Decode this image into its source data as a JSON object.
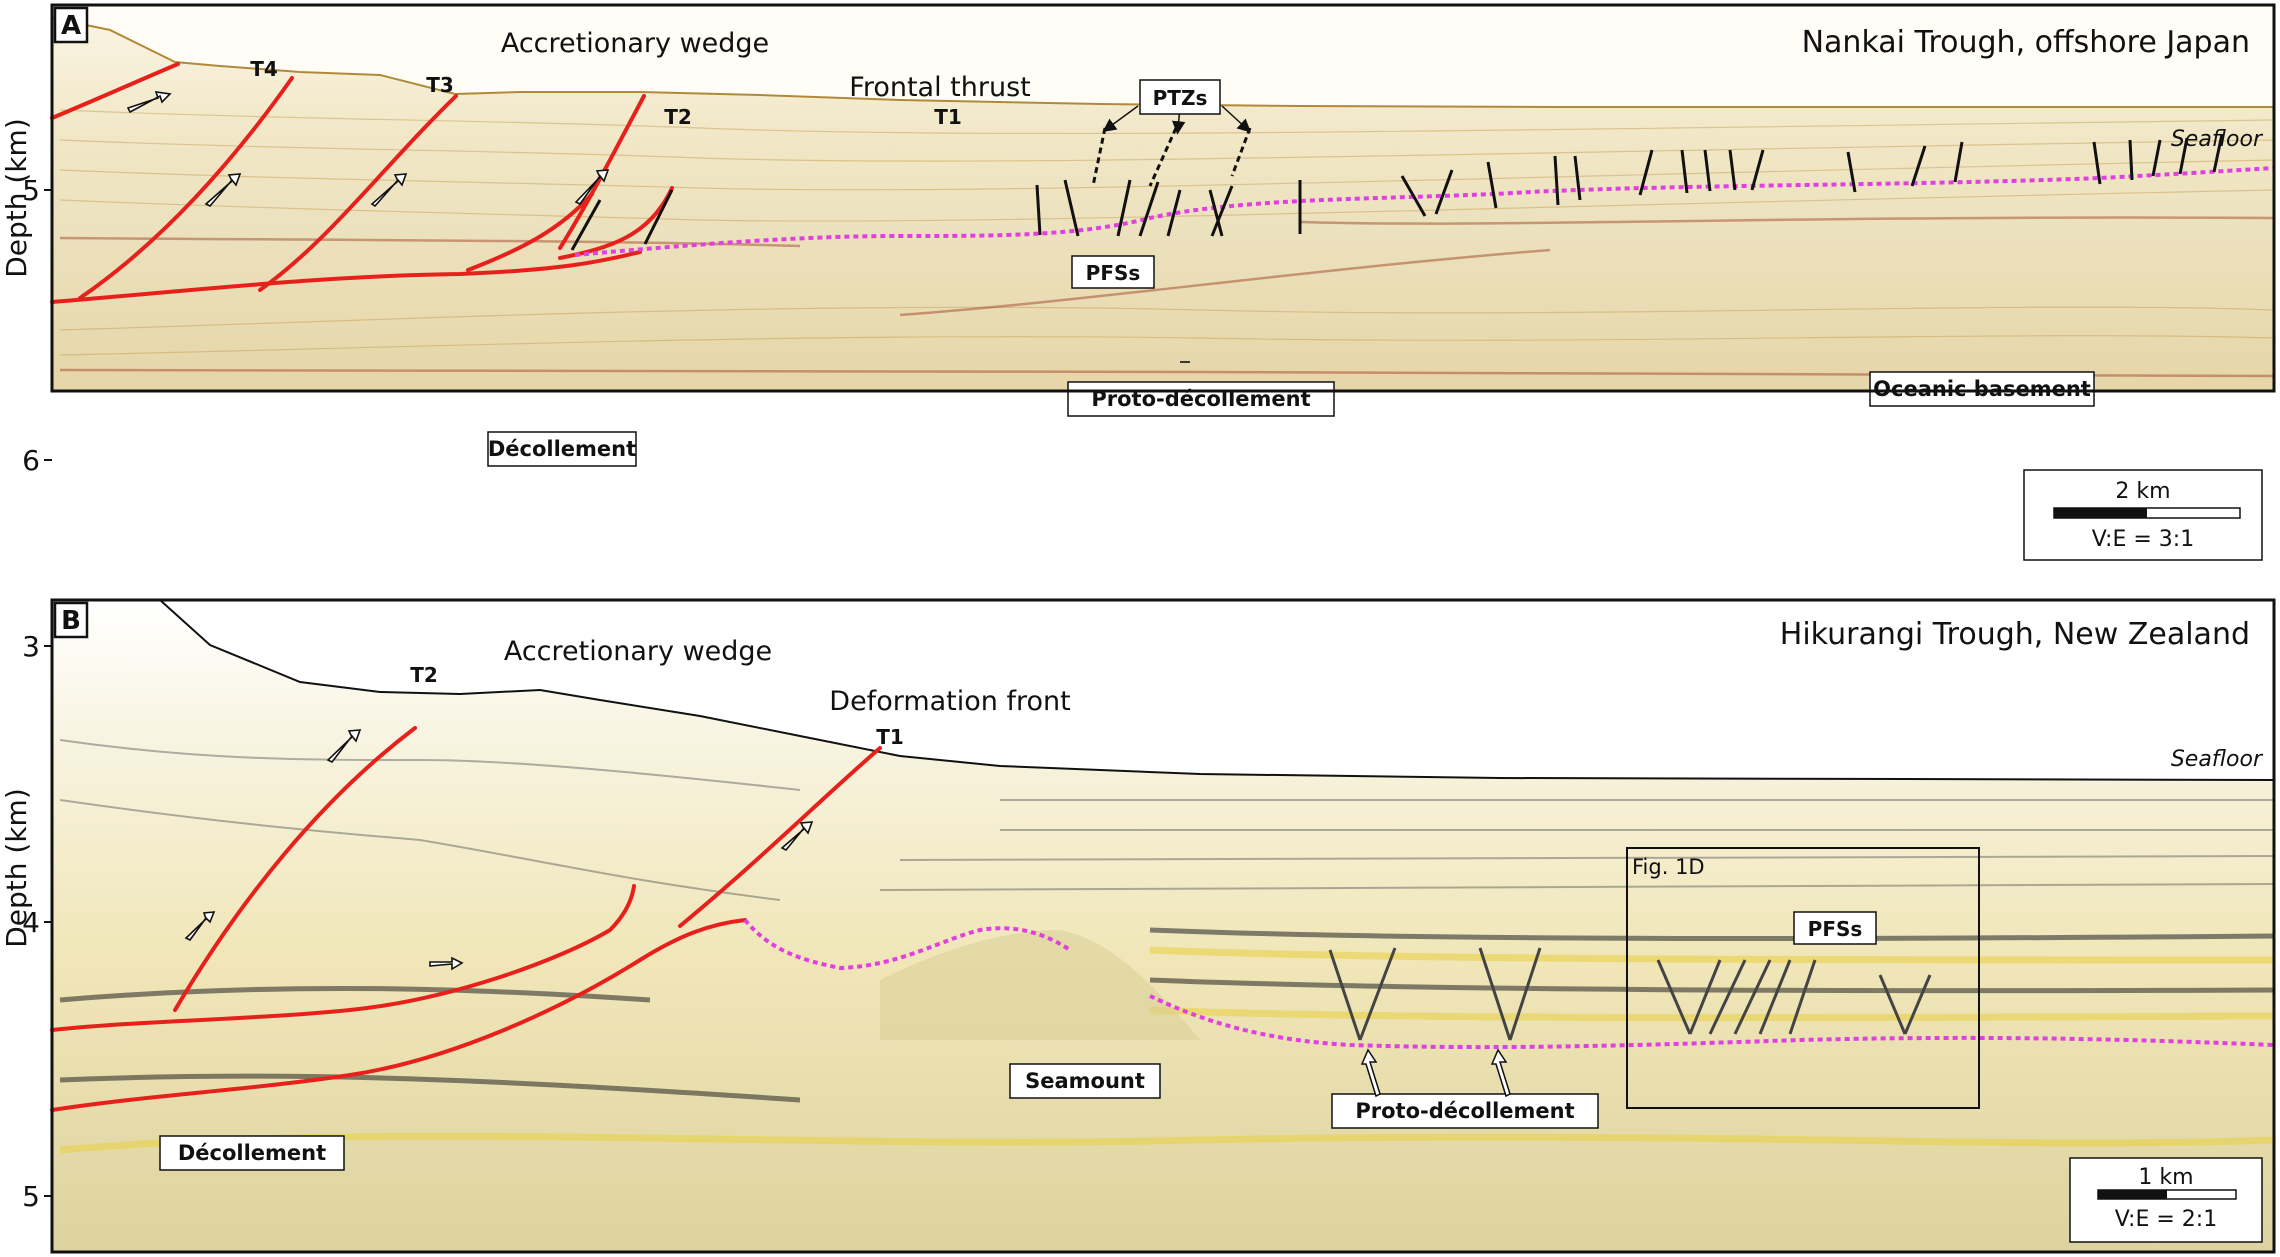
{
  "panels": [
    {
      "letter": "A",
      "title": "Nankai Trough, offshore Japan",
      "axis_title": "Depth (km)",
      "ticks": [
        "5",
        "6"
      ],
      "wedge_label": "Accretionary wedge",
      "front_label": "Frontal thrust",
      "thrust_labels": [
        "T4",
        "T3",
        "T2",
        "T1"
      ],
      "seafloor_label": "Seafloor",
      "ptz_label": "PTZs",
      "pfs_label": "PFSs",
      "proto_label": "Proto-décollement",
      "decollement_label": "Décollement",
      "basement_label": "Oceanic basement",
      "scale_label": "2 km",
      "ve_label": "V:E = 3:1"
    },
    {
      "letter": "B",
      "title": "Hikurangi Trough, New Zealand",
      "axis_title": "Depth (km)",
      "ticks": [
        "3",
        "4",
        "5"
      ],
      "wedge_label": "Accretionary wedge",
      "front_label": "Deformation front",
      "thrust_labels": [
        "T2",
        "T1"
      ],
      "seafloor_label": "Seafloor",
      "fig_box_label": "Fig. 1D",
      "pfs_label": "PFSs",
      "seamount_label": "Seamount",
      "proto_label": "Proto-décollement",
      "decollement_label": "Décollement",
      "scale_label": "1 km",
      "ve_label": "V:E = 2:1"
    }
  ],
  "colors": {
    "thrust": "#e8201c",
    "proto_decollement": "#e040e0",
    "seismic_bg_a": "#f3ecd2",
    "seismic_bg_b": "#f6f0d8"
  }
}
